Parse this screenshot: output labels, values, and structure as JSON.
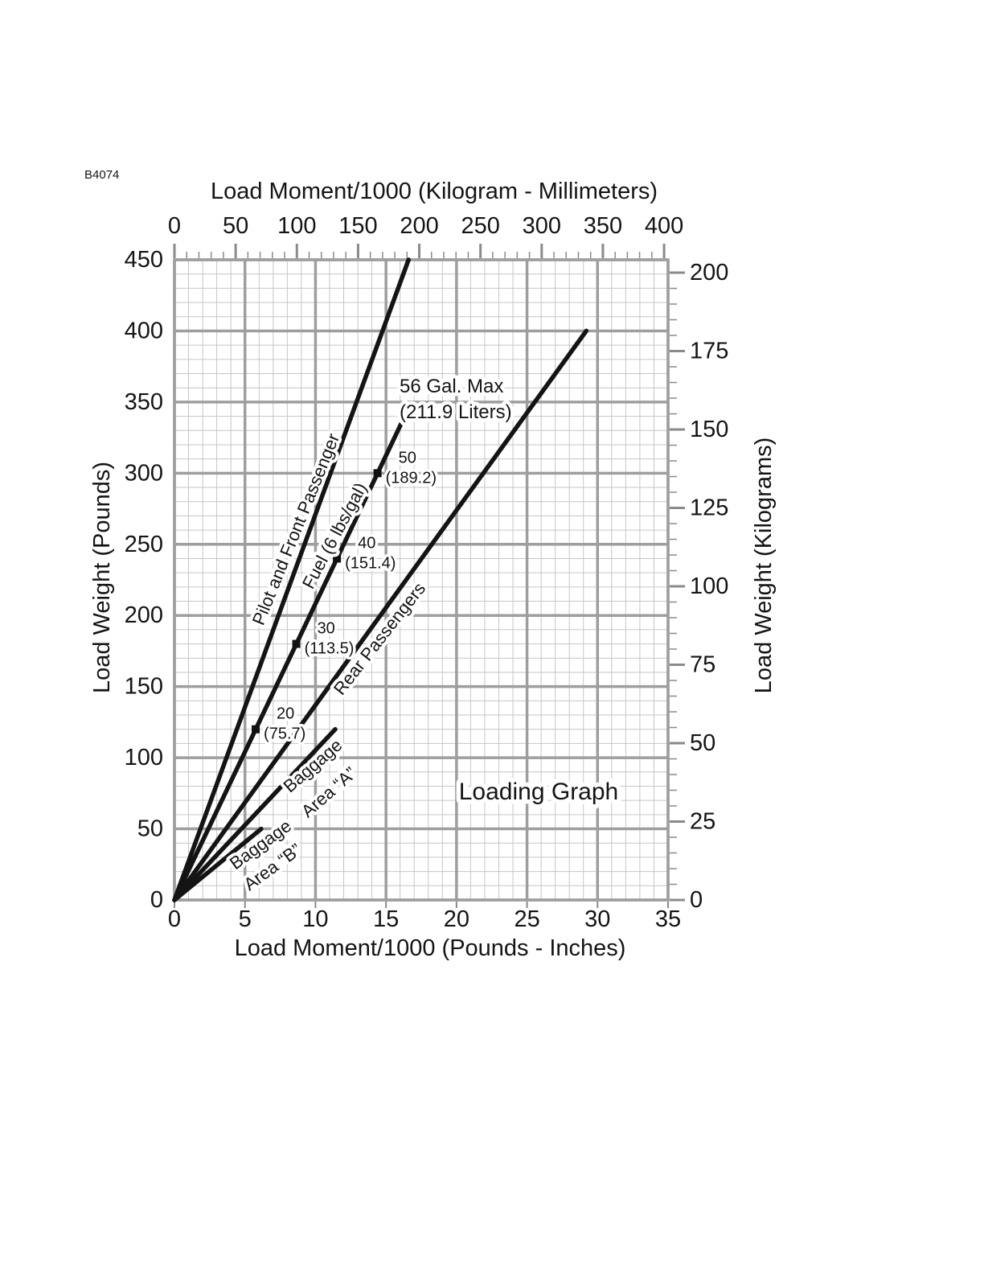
{
  "figure_code": "B4074",
  "chart_data": {
    "type": "line",
    "title": "Loading Graph",
    "axes": {
      "top": {
        "title": "Load Moment/1000 (Kilogram - Millimeters)",
        "min": 0,
        "max": 400,
        "tick_labels": [
          0,
          50,
          100,
          150,
          200,
          250,
          300,
          350,
          400
        ],
        "minor_tick_step": 10
      },
      "bottom": {
        "title": "Load Moment/1000 (Pounds - Inches)",
        "min": 0,
        "max": 35,
        "tick_labels": [
          0,
          5,
          10,
          15,
          20,
          25,
          30,
          35
        ],
        "minor_grid_step": 1,
        "major_grid_step": 5
      },
      "left": {
        "title": "Load Weight (Pounds)",
        "min": 0,
        "max": 450,
        "tick_labels": [
          0,
          50,
          100,
          150,
          200,
          250,
          300,
          350,
          400,
          450
        ],
        "minor_grid_step": 10,
        "major_grid_step": 50
      },
      "right": {
        "title": "Load Weight (Kilograms)",
        "min": 0,
        "max": 200,
        "tick_labels": [
          0,
          25,
          50,
          75,
          100,
          125,
          150,
          175,
          200
        ],
        "minor_tick_step": 5
      }
    },
    "series": [
      {
        "id": "pilot_front_passenger",
        "name": "Pilot and Front Passenger",
        "label_lines": [
          "Pilot and Front Passenger"
        ],
        "points": [
          [
            0,
            0
          ],
          [
            16.6,
            450
          ]
        ]
      },
      {
        "id": "fuel",
        "name": "Fuel (6 lbs/gal)",
        "label_lines": [
          "Fuel (6 lbs/gal)"
        ],
        "points": [
          [
            0,
            0
          ],
          [
            16.13,
            336
          ]
        ]
      },
      {
        "id": "rear_passengers",
        "name": "Rear Passengers",
        "label_lines": [
          "Rear Passengers"
        ],
        "points": [
          [
            0,
            0
          ],
          [
            29.2,
            400
          ]
        ]
      },
      {
        "id": "baggage_a",
        "name": "Baggage Area “A”",
        "label_lines": [
          "Baggage",
          "Area “A”"
        ],
        "points": [
          [
            0,
            0
          ],
          [
            11.4,
            120
          ]
        ]
      },
      {
        "id": "baggage_b",
        "name": "Baggage Area “B”",
        "label_lines": [
          "Baggage",
          "Area “B”"
        ],
        "points": [
          [
            0,
            0
          ],
          [
            6.15,
            50
          ]
        ]
      }
    ],
    "fuel_markers": [
      {
        "gallons_label": "20",
        "liters_label": "(75.7)",
        "moment": 5.76,
        "weight": 120
      },
      {
        "gallons_label": "30",
        "liters_label": "(113.5)",
        "moment": 8.64,
        "weight": 180
      },
      {
        "gallons_label": "40",
        "liters_label": "(151.4)",
        "moment": 11.52,
        "weight": 240
      },
      {
        "gallons_label": "50",
        "liters_label": "(189.2)",
        "moment": 14.4,
        "weight": 300
      }
    ],
    "annotations": [
      {
        "id": "fuel_max",
        "lines": [
          "56 Gal. Max",
          "(211.9 Liters)"
        ]
      },
      {
        "id": "chart_title",
        "lines": [
          "Loading Graph"
        ]
      }
    ]
  }
}
